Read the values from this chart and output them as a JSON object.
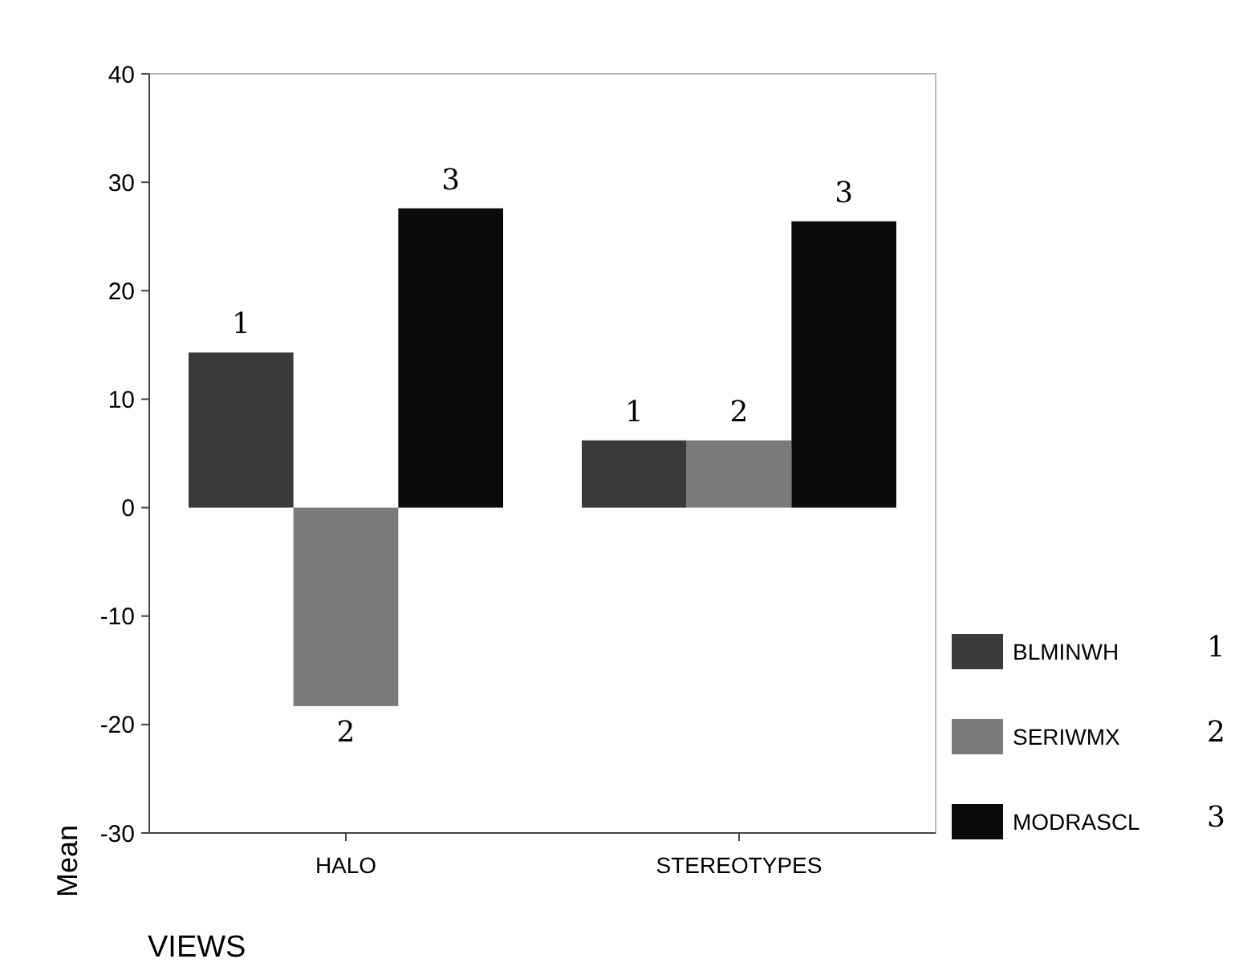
{
  "chart_data": {
    "type": "bar",
    "xlabel": "VIEWS",
    "ylabel": "Mean",
    "categories": [
      "HALO",
      "STEREOTYPES"
    ],
    "series": [
      {
        "name": "BLMINWH",
        "color": "#3a3a3a",
        "values": [
          14.3,
          6.2
        ]
      },
      {
        "name": "SERIWMX",
        "color": "#7a7a7a",
        "values": [
          -18.3,
          6.2
        ]
      },
      {
        "name": "MODRASCL",
        "color": "#0a0a0a",
        "values": [
          27.6,
          26.4
        ]
      }
    ],
    "ylim": [
      -30,
      40
    ],
    "yticks": [
      -30,
      -20,
      -10,
      0,
      10,
      20,
      30,
      40
    ],
    "grid": false,
    "legend": "right",
    "annotations": [
      "1",
      "2",
      "3",
      "1",
      "2",
      "3",
      "1",
      "2",
      "3"
    ]
  }
}
